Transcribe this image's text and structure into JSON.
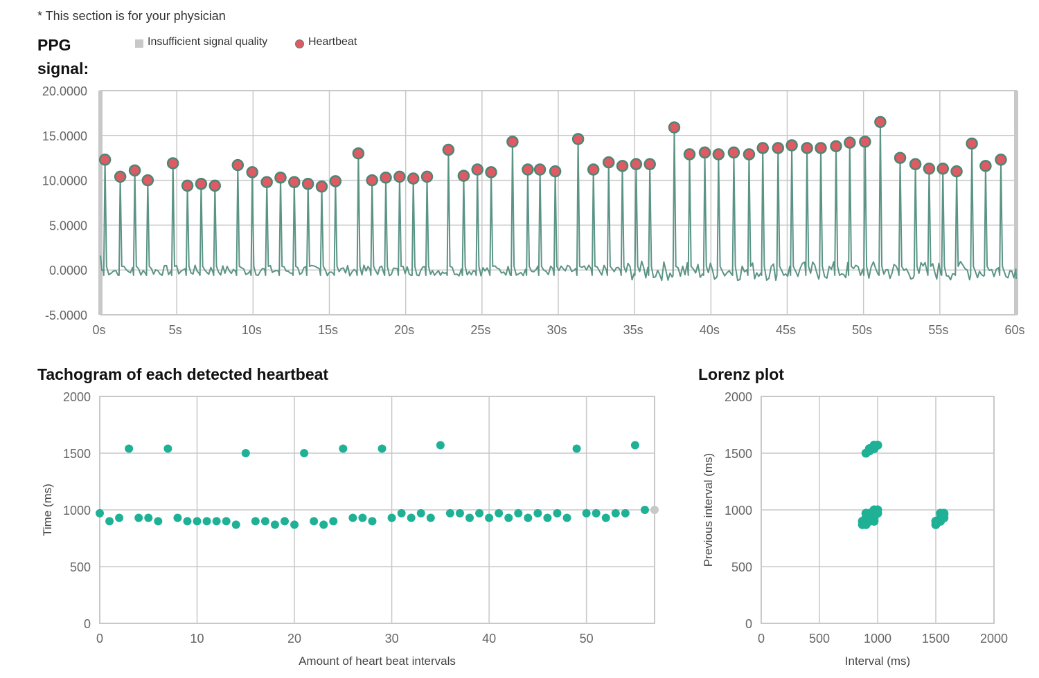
{
  "note": "* This section is for your physician",
  "ppg": {
    "title": "PPG signal:",
    "legend": {
      "insufficient": "Insufficient signal quality",
      "heartbeat": "Heartbeat"
    }
  },
  "tachogram": {
    "title": "Tachogram of each detected heartbeat"
  },
  "lorenz": {
    "title": "Lorenz plot"
  },
  "colors": {
    "signal": "#5b9485",
    "beat_fill": "#e05a63",
    "beat_stroke": "#4d8574",
    "point": "#1fb196",
    "insufficient": "#c8c8c8",
    "grid": "#c8c8c8"
  },
  "chart_data": [
    {
      "type": "line",
      "title": "PPG signal:",
      "xlim": [
        0,
        60
      ],
      "ylim": [
        -5,
        20
      ],
      "x_ticks": [
        "0s",
        "5s",
        "10s",
        "15s",
        "20s",
        "25s",
        "30s",
        "35s",
        "40s",
        "45s",
        "50s",
        "55s",
        "60s"
      ],
      "y_ticks": [
        "20.0000",
        "15.0000",
        "10.0000",
        "5.0000",
        "0.0000",
        "-5.0000"
      ],
      "grid": true,
      "legend": {
        "entries": [
          "Insufficient signal quality",
          "Heartbeat"
        ],
        "placement": "top"
      },
      "series": [
        {
          "name": "Heartbeat",
          "x": [
            0.3,
            1.3,
            2.25,
            3.1,
            4.75,
            5.7,
            6.6,
            7.5,
            9.0,
            9.95,
            10.9,
            11.8,
            12.7,
            13.6,
            14.5,
            15.4,
            16.9,
            17.8,
            18.7,
            19.6,
            20.5,
            21.4,
            22.8,
            23.8,
            24.7,
            25.6,
            27.0,
            28.0,
            28.8,
            29.8,
            31.3,
            32.3,
            33.3,
            34.2,
            35.1,
            36.0,
            37.6,
            38.6,
            39.6,
            40.5,
            41.5,
            42.5,
            43.4,
            44.4,
            45.3,
            46.3,
            47.2,
            48.2,
            49.1,
            50.1,
            51.1,
            52.4,
            53.4,
            54.3,
            55.2,
            56.1,
            57.1,
            58.0,
            59.0
          ],
          "y": [
            12.3,
            10.4,
            11.1,
            10.0,
            11.9,
            9.4,
            9.6,
            9.4,
            11.7,
            10.9,
            9.8,
            10.3,
            9.8,
            9.6,
            9.3,
            9.9,
            13.0,
            10.0,
            10.3,
            10.4,
            10.2,
            10.4,
            13.4,
            10.5,
            11.2,
            10.9,
            14.3,
            11.2,
            11.2,
            11.0,
            14.6,
            11.2,
            12.0,
            11.6,
            11.8,
            11.8,
            15.9,
            12.9,
            13.1,
            12.9,
            13.1,
            12.9,
            13.6,
            13.6,
            13.9,
            13.6,
            13.6,
            13.8,
            14.2,
            14.3,
            16.5,
            12.5,
            11.8,
            11.3,
            11.3,
            11.0,
            14.1,
            11.6,
            12.3
          ]
        }
      ]
    },
    {
      "type": "scatter",
      "title": "Tachogram of each detected heartbeat",
      "xlabel": "Amount of heart beat intervals",
      "ylabel": "Time (ms)",
      "xlim": [
        0,
        57
      ],
      "ylim": [
        0,
        2000
      ],
      "x_ticks": [
        0,
        10,
        20,
        30,
        40,
        50
      ],
      "y_ticks": [
        0,
        500,
        1000,
        1500,
        2000
      ],
      "grid": true,
      "series": [
        {
          "values": [
            970,
            900,
            930,
            1540,
            930,
            930,
            900,
            1540,
            930,
            900,
            900,
            900,
            900,
            900,
            870,
            1500,
            900,
            900,
            870,
            900,
            870,
            1500,
            900,
            870,
            900,
            1540,
            930,
            930,
            900,
            1540,
            930,
            970,
            930,
            970,
            930,
            1570,
            970,
            970,
            930,
            970,
            930,
            970,
            930,
            970,
            930,
            970,
            930,
            970,
            930,
            1540,
            970,
            970,
            930,
            970,
            970,
            1570,
            1000
          ]
        },
        {
          "name": "Insufficient signal quality",
          "x": [
            57
          ],
          "values": [
            1000
          ]
        }
      ]
    },
    {
      "type": "scatter",
      "title": "Lorenz plot",
      "xlabel": "Interval (ms)",
      "ylabel": "Previous interval (ms)",
      "xlim": [
        0,
        2000
      ],
      "ylim": [
        0,
        2000
      ],
      "x_ticks": [
        0,
        500,
        1000,
        1500,
        2000
      ],
      "y_ticks": [
        0,
        500,
        1000,
        1500,
        2000
      ],
      "grid": true,
      "series": [
        {
          "points": [
            [
              900,
              1500
            ],
            [
              930,
              1540
            ],
            [
              960,
              1550
            ],
            [
              970,
              1540
            ],
            [
              1000,
              1570
            ],
            [
              1000,
              1570
            ],
            [
              970,
              1570
            ],
            [
              930,
              1520
            ],
            [
              870,
              900
            ],
            [
              900,
              870
            ],
            [
              900,
              900
            ],
            [
              930,
              900
            ],
            [
              900,
              930
            ],
            [
              930,
              930
            ],
            [
              970,
              930
            ],
            [
              930,
              970
            ],
            [
              970,
              970
            ],
            [
              1000,
              970
            ],
            [
              970,
              1000
            ],
            [
              900,
              970
            ],
            [
              970,
              900
            ],
            [
              1000,
              1000
            ],
            [
              870,
              870
            ],
            [
              950,
              950
            ],
            [
              940,
              960
            ],
            [
              960,
              940
            ],
            [
              1500,
              870
            ],
            [
              1540,
              900
            ],
            [
              1540,
              930
            ],
            [
              1570,
              930
            ],
            [
              1570,
              970
            ],
            [
              1540,
              970
            ],
            [
              1500,
              900
            ],
            [
              1570,
              960
            ]
          ]
        },
        {
          "name": "Insufficient signal quality",
          "points": [
            [
              1000,
              1000
            ]
          ]
        }
      ]
    }
  ]
}
